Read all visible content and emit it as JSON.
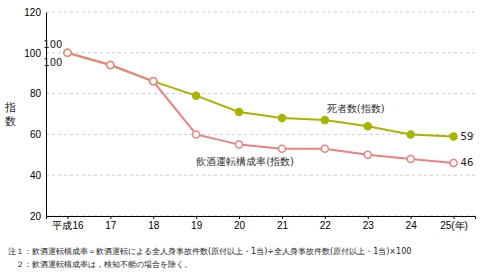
{
  "chart_data": {
    "type": "line",
    "categories": [
      "平成16",
      "17",
      "18",
      "19",
      "20",
      "21",
      "22",
      "23",
      "24",
      "25(年)"
    ],
    "series": [
      {
        "name": "死者数(指数)",
        "color": "#a8b400",
        "marker": "circle",
        "line_style": "solid",
        "values": [
          100,
          94,
          86,
          79,
          71,
          68,
          67,
          64,
          60,
          59
        ],
        "value_labels": [
          "100",
          null,
          null,
          null,
          null,
          null,
          null,
          null,
          null,
          "59"
        ]
      },
      {
        "name": "飲酒運転構成率(指数)",
        "color": "#f08080",
        "marker": "open-circle",
        "line_style": "solid",
        "values": [
          100,
          94,
          86,
          60,
          55,
          53,
          53,
          50,
          48,
          46
        ],
        "value_labels": [
          "100",
          null,
          null,
          null,
          null,
          null,
          null,
          null,
          null,
          "46"
        ]
      }
    ],
    "y_label": "指\n数",
    "ylim": [
      20,
      120
    ],
    "yticks": [
      20,
      40,
      60,
      80,
      100,
      120
    ],
    "grid": true,
    "notes": [
      "注１：飲酒運転構成率＝飲酒運転による全人身事故件数(原付以上・1当)÷全人身事故件数(原付以上・1当)×100",
      "　２：飲酒運転構成率は，検知不能の場合を除く。"
    ]
  }
}
